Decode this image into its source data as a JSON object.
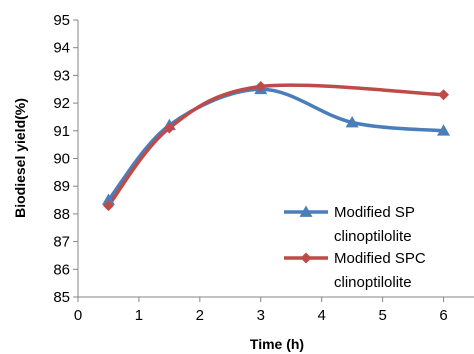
{
  "chart_data": {
    "type": "line",
    "xlabel": "Time (h)",
    "ylabel": "Biodiesel yield(%)",
    "xlim": [
      0,
      6.5
    ],
    "ylim": [
      85,
      95
    ],
    "x_ticks": [
      "0",
      "1",
      "2",
      "3",
      "4",
      "5",
      "6"
    ],
    "y_ticks": [
      "85",
      "86",
      "87",
      "88",
      "89",
      "90",
      "91",
      "92",
      "93",
      "94",
      "95"
    ],
    "grid": false,
    "legend_position": "bottom-right",
    "series": [
      {
        "name_lines": [
          "Modified SP",
          "clinoptilolite"
        ],
        "color": "#4A7EBB",
        "marker": "triangle",
        "x": [
          0.5,
          1.5,
          3,
          4.5,
          6
        ],
        "y": [
          88.5,
          91.2,
          92.5,
          91.3,
          91.0
        ]
      },
      {
        "name_lines": [
          "Modified SPC",
          "clinoptilolite"
        ],
        "color": "#BE4B48",
        "marker": "diamond",
        "x": [
          0.5,
          1.5,
          3,
          4.5,
          6
        ],
        "y": [
          88.3,
          91.1,
          92.6,
          null,
          92.3
        ]
      }
    ]
  }
}
